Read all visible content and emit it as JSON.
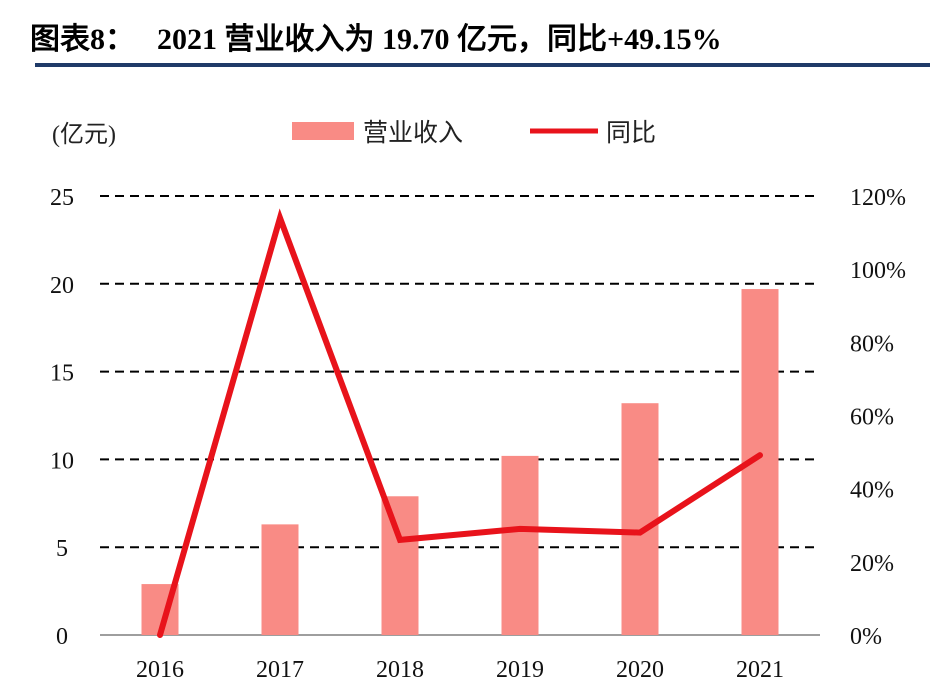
{
  "title": {
    "prefix": "图表8：",
    "text": "2021 营业收入为 19.70 亿元，同比+49.15%"
  },
  "colors": {
    "bar": "#f98b85",
    "line": "#e8131b",
    "grid": "#000000",
    "rule": "#1f3a68"
  },
  "chart_data": {
    "type": "bar",
    "categories": [
      "2016",
      "2017",
      "2018",
      "2019",
      "2020",
      "2021"
    ],
    "ylabel": "(亿元)",
    "ylim": [
      0,
      25
    ],
    "y_ticks": [
      "0",
      "5",
      "10",
      "15",
      "20",
      "25"
    ],
    "y2lim": [
      0,
      120
    ],
    "y2_ticks": [
      "0%",
      "20%",
      "40%",
      "60%",
      "80%",
      "100%",
      "120%"
    ],
    "grid": "dashed horizontal",
    "legend_position": "top",
    "series": [
      {
        "name": "营业收入",
        "type": "bar",
        "axis": "left",
        "values": [
          2.9,
          6.3,
          7.9,
          10.2,
          13.2,
          19.7
        ]
      },
      {
        "name": "同比",
        "type": "line",
        "axis": "right",
        "values": [
          0,
          114,
          26,
          29,
          28,
          49.15
        ]
      }
    ]
  }
}
